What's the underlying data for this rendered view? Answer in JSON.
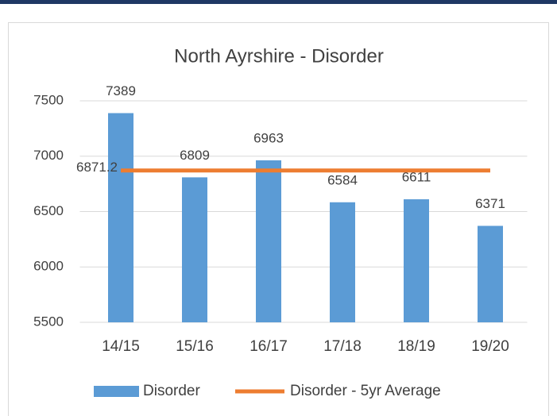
{
  "chart_data": {
    "type": "bar",
    "title": "North Ayrshire - Disorder",
    "categories": [
      "14/15",
      "15/16",
      "16/17",
      "17/18",
      "18/19",
      "19/20"
    ],
    "series": [
      {
        "name": "Disorder",
        "color": "#5b9bd5",
        "type": "bar",
        "values": [
          7389,
          6809,
          6963,
          6584,
          6611,
          6371
        ]
      },
      {
        "name": "Disorder - 5yr Average",
        "color": "#ed7d31",
        "type": "line",
        "values": [
          6871.2,
          6871.2,
          6871.2,
          6871.2,
          6871.2,
          6871.2
        ]
      }
    ],
    "ylim": [
      5500,
      7500
    ],
    "yticks": [
      5500,
      6000,
      6500,
      7000,
      7500
    ],
    "grid": true,
    "legend": "bottom"
  }
}
